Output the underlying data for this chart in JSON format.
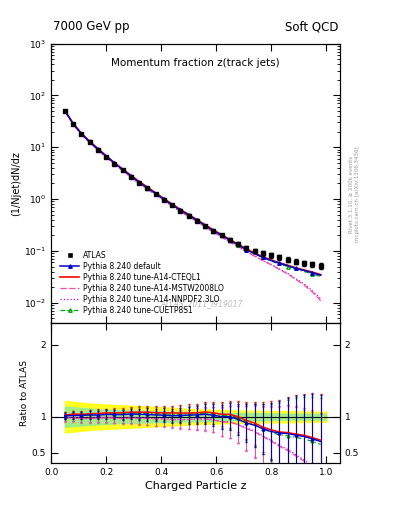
{
  "title_top": "7000 GeV pp",
  "title_right": "Soft QCD",
  "plot_title": "Momentum fraction z(track jets)",
  "xlabel": "Charged Particle z",
  "ylabel_main": "(1/Njet)dN/dz",
  "ylabel_ratio": "Ratio to ATLAS",
  "watermark": "ATLAS_2011_I919017",
  "right_label": "mcplots.cern.ch [arXiv:1306.3436]",
  "right_label2": "Rivet 3.1.10, ≥ 200k events",
  "z_data": [
    0.05,
    0.08,
    0.11,
    0.14,
    0.17,
    0.2,
    0.23,
    0.26,
    0.29,
    0.32,
    0.35,
    0.38,
    0.41,
    0.44,
    0.47,
    0.5,
    0.53,
    0.56,
    0.59,
    0.62,
    0.65,
    0.68,
    0.71,
    0.74,
    0.77,
    0.8,
    0.83,
    0.86,
    0.89,
    0.92,
    0.95,
    0.98
  ],
  "atlas_y": [
    50.0,
    28.0,
    18.0,
    12.5,
    9.0,
    6.5,
    4.8,
    3.6,
    2.7,
    2.05,
    1.6,
    1.25,
    0.97,
    0.76,
    0.6,
    0.48,
    0.38,
    0.3,
    0.24,
    0.2,
    0.16,
    0.135,
    0.115,
    0.1,
    0.09,
    0.082,
    0.075,
    0.068,
    0.062,
    0.058,
    0.055,
    0.052
  ],
  "atlas_yerr": [
    2.0,
    1.2,
    0.8,
    0.55,
    0.4,
    0.3,
    0.22,
    0.17,
    0.13,
    0.1,
    0.08,
    0.065,
    0.05,
    0.04,
    0.035,
    0.03,
    0.025,
    0.02,
    0.018,
    0.016,
    0.014,
    0.012,
    0.011,
    0.01,
    0.009,
    0.008,
    0.008,
    0.007,
    0.007,
    0.007,
    0.007,
    0.007
  ],
  "py_default_y": [
    50.5,
    28.5,
    18.3,
    12.8,
    9.2,
    6.7,
    4.95,
    3.7,
    2.8,
    2.12,
    1.65,
    1.28,
    0.99,
    0.77,
    0.61,
    0.49,
    0.39,
    0.31,
    0.245,
    0.2,
    0.16,
    0.13,
    0.105,
    0.088,
    0.075,
    0.065,
    0.058,
    0.052,
    0.046,
    0.042,
    0.038,
    0.034
  ],
  "py_cteql1_y": [
    51.0,
    29.0,
    18.6,
    13.0,
    9.4,
    6.85,
    5.05,
    3.8,
    2.87,
    2.18,
    1.7,
    1.32,
    1.02,
    0.8,
    0.63,
    0.505,
    0.4,
    0.32,
    0.253,
    0.207,
    0.165,
    0.135,
    0.109,
    0.091,
    0.077,
    0.067,
    0.059,
    0.053,
    0.047,
    0.043,
    0.039,
    0.035
  ],
  "py_mstw_y": [
    49.0,
    27.5,
    17.5,
    12.2,
    8.8,
    6.4,
    4.7,
    3.5,
    2.65,
    2.0,
    1.56,
    1.21,
    0.94,
    0.73,
    0.575,
    0.46,
    0.37,
    0.29,
    0.23,
    0.185,
    0.148,
    0.12,
    0.096,
    0.079,
    0.065,
    0.054,
    0.044,
    0.036,
    0.028,
    0.022,
    0.016,
    0.011
  ],
  "py_nnpdf_y": [
    49.5,
    27.8,
    17.7,
    12.3,
    8.9,
    6.45,
    4.75,
    3.55,
    2.68,
    2.02,
    1.57,
    1.22,
    0.945,
    0.735,
    0.578,
    0.462,
    0.368,
    0.291,
    0.231,
    0.186,
    0.149,
    0.12,
    0.097,
    0.08,
    0.066,
    0.055,
    0.045,
    0.037,
    0.029,
    0.023,
    0.017,
    0.012
  ],
  "py_cuetp_y": [
    50.8,
    28.8,
    18.4,
    12.9,
    9.3,
    6.8,
    5.0,
    3.75,
    2.84,
    2.15,
    1.67,
    1.3,
    1.01,
    0.785,
    0.62,
    0.497,
    0.395,
    0.315,
    0.25,
    0.203,
    0.163,
    0.133,
    0.107,
    0.089,
    0.075,
    0.064,
    0.056,
    0.05,
    0.044,
    0.04,
    0.036,
    0.032
  ],
  "ratio_default": [
    1.01,
    1.018,
    1.017,
    1.024,
    1.022,
    1.031,
    1.031,
    1.028,
    1.037,
    1.034,
    1.031,
    1.024,
    1.021,
    1.013,
    1.017,
    1.021,
    1.026,
    1.033,
    1.021,
    1.0,
    1.0,
    0.963,
    0.913,
    0.88,
    0.833,
    0.793,
    0.773,
    0.765,
    0.742,
    0.724,
    0.691,
    0.654
  ],
  "ratio_cteql1": [
    1.02,
    1.036,
    1.033,
    1.04,
    1.044,
    1.054,
    1.052,
    1.056,
    1.063,
    1.063,
    1.063,
    1.056,
    1.052,
    1.053,
    1.05,
    1.052,
    1.053,
    1.067,
    1.054,
    1.035,
    1.031,
    1.0,
    0.948,
    0.91,
    0.856,
    0.817,
    0.787,
    0.779,
    0.758,
    0.741,
    0.709,
    0.673
  ],
  "ratio_mstw": [
    0.98,
    0.982,
    0.972,
    0.976,
    0.978,
    0.985,
    0.979,
    0.972,
    0.981,
    0.976,
    0.975,
    0.968,
    0.969,
    0.961,
    0.958,
    0.958,
    0.974,
    0.967,
    0.958,
    0.925,
    0.925,
    0.889,
    0.835,
    0.79,
    0.722,
    0.659,
    0.587,
    0.529,
    0.452,
    0.379,
    0.291,
    0.212
  ],
  "ratio_nnpdf": [
    0.99,
    0.993,
    0.983,
    0.984,
    0.989,
    0.992,
    0.99,
    0.986,
    0.993,
    0.985,
    0.981,
    0.976,
    0.974,
    0.967,
    0.963,
    0.963,
    0.968,
    0.97,
    0.963,
    0.93,
    0.931,
    0.889,
    0.843,
    0.8,
    0.733,
    0.671,
    0.6,
    0.544,
    0.468,
    0.397,
    0.309,
    0.231
  ],
  "ratio_cuetp": [
    1.016,
    1.029,
    1.022,
    1.032,
    1.033,
    1.046,
    1.042,
    1.042,
    1.052,
    1.049,
    1.044,
    1.04,
    1.041,
    1.033,
    1.033,
    1.035,
    1.039,
    1.05,
    1.042,
    1.015,
    1.019,
    0.985,
    0.93,
    0.89,
    0.833,
    0.78,
    0.747,
    0.735,
    0.71,
    0.69,
    0.655,
    0.615
  ],
  "ratio_default_err": [
    0.045,
    0.048,
    0.05,
    0.055,
    0.057,
    0.06,
    0.065,
    0.07,
    0.075,
    0.08,
    0.085,
    0.09,
    0.095,
    0.1,
    0.11,
    0.12,
    0.13,
    0.14,
    0.15,
    0.17,
    0.19,
    0.22,
    0.26,
    0.3,
    0.35,
    0.4,
    0.45,
    0.5,
    0.55,
    0.58,
    0.62,
    0.65
  ],
  "ratio_cteql1_err": [
    0.045,
    0.048,
    0.05,
    0.055,
    0.057,
    0.06,
    0.065,
    0.07,
    0.075,
    0.08,
    0.085,
    0.09,
    0.095,
    0.1,
    0.11,
    0.12,
    0.13,
    0.14,
    0.15,
    0.17,
    0.19,
    0.22,
    0.26,
    0.3,
    0.35,
    0.4,
    0.45,
    0.5,
    0.55,
    0.58,
    0.62,
    0.65
  ],
  "ratio_mstw_err": [
    0.05,
    0.053,
    0.055,
    0.06,
    0.063,
    0.067,
    0.072,
    0.077,
    0.083,
    0.09,
    0.095,
    0.1,
    0.11,
    0.115,
    0.125,
    0.135,
    0.148,
    0.16,
    0.175,
    0.2,
    0.225,
    0.26,
    0.31,
    0.36,
    0.42,
    0.48,
    0.55,
    0.62,
    0.68,
    0.72,
    0.78,
    0.82
  ],
  "ratio_nnpdf_err": [
    0.05,
    0.053,
    0.055,
    0.06,
    0.063,
    0.067,
    0.072,
    0.077,
    0.083,
    0.09,
    0.095,
    0.1,
    0.11,
    0.115,
    0.125,
    0.135,
    0.148,
    0.16,
    0.175,
    0.2,
    0.225,
    0.26,
    0.31,
    0.36,
    0.42,
    0.48,
    0.55,
    0.62,
    0.68,
    0.72,
    0.78,
    0.82
  ],
  "ratio_cuetp_err": [
    0.045,
    0.048,
    0.05,
    0.055,
    0.057,
    0.06,
    0.065,
    0.07,
    0.075,
    0.08,
    0.085,
    0.09,
    0.095,
    0.1,
    0.11,
    0.12,
    0.13,
    0.14,
    0.15,
    0.17,
    0.19,
    0.22,
    0.26,
    0.3,
    0.35,
    0.4,
    0.45,
    0.5,
    0.55,
    0.58,
    0.62,
    0.65
  ],
  "band_yellow_x": [
    0.05,
    0.15,
    0.25,
    0.35,
    0.45,
    0.55,
    0.65,
    0.75,
    0.85,
    0.95,
    1.0
  ],
  "band_yellow_lo": [
    0.78,
    0.82,
    0.84,
    0.86,
    0.88,
    0.9,
    0.91,
    0.92,
    0.92,
    0.93,
    0.93
  ],
  "band_yellow_hi": [
    1.22,
    1.18,
    1.16,
    1.14,
    1.12,
    1.1,
    1.09,
    1.08,
    1.08,
    1.07,
    1.07
  ],
  "band_green_lo": [
    0.86,
    0.89,
    0.91,
    0.92,
    0.93,
    0.94,
    0.95,
    0.95,
    0.96,
    0.96,
    0.96
  ],
  "band_green_hi": [
    1.14,
    1.11,
    1.09,
    1.08,
    1.07,
    1.06,
    1.05,
    1.05,
    1.04,
    1.04,
    1.04
  ],
  "color_atlas": "#000000",
  "color_default": "#0000cc",
  "color_cteql1": "#ff0000",
  "color_mstw": "#ff44aa",
  "color_nnpdf": "#dd00dd",
  "color_cuetp": "#00aa00",
  "xlim": [
    0.0,
    1.05
  ],
  "ylim_main": [
    0.004,
    1000
  ],
  "ylim_ratio": [
    0.35,
    2.3
  ]
}
